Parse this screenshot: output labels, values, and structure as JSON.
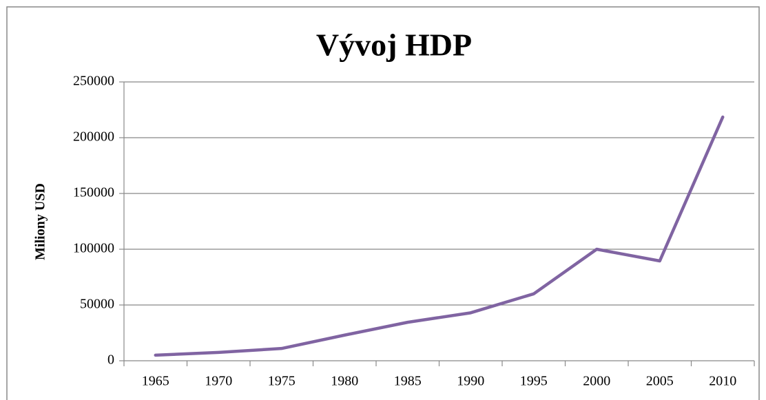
{
  "chart_data": {
    "type": "line",
    "title": "Vývoj HDP",
    "y_label": "Miliony USD",
    "categories": [
      "1965",
      "1970",
      "1975",
      "1980",
      "1985",
      "1990",
      "1995",
      "2000",
      "2005",
      "2010"
    ],
    "series": [
      {
        "name": "HDP",
        "color": "#8064a2",
        "values": [
          5000,
          7500,
          11000,
          23000,
          34500,
          43000,
          60000,
          100000,
          89500,
          218500
        ]
      }
    ],
    "ylim": [
      0,
      250000
    ],
    "yticks": [
      0,
      50000,
      100000,
      150000,
      200000,
      250000
    ],
    "grid": true
  }
}
